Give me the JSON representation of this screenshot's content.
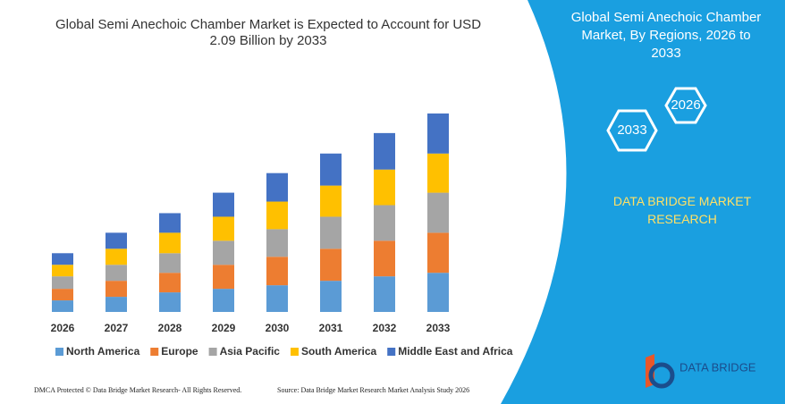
{
  "chart_data": {
    "type": "stacked-bar",
    "title": "Global Semi Anechoic Chamber Market is Expected to Account for USD 2.09 Billion by 2033",
    "categories": [
      "2026",
      "2027",
      "2028",
      "2029",
      "2030",
      "2031",
      "2032",
      "2033"
    ],
    "series": [
      {
        "name": "North America",
        "color": "#5b9bd5",
        "values": [
          13,
          17,
          22,
          26,
          30,
          35,
          40,
          44
        ]
      },
      {
        "name": "Europe",
        "color": "#ed7d31",
        "values": [
          13,
          18,
          22,
          27,
          32,
          36,
          40,
          45
        ]
      },
      {
        "name": "Asia Pacific",
        "color": "#a5a5a5",
        "values": [
          14,
          18,
          22,
          27,
          31,
          36,
          40,
          45
        ]
      },
      {
        "name": "South America",
        "color": "#ffc000",
        "values": [
          13,
          18,
          23,
          27,
          31,
          35,
          40,
          44
        ]
      },
      {
        "name": "Middle East and Africa",
        "color": "#4472c4",
        "values": [
          13,
          18,
          22,
          27,
          32,
          36,
          41,
          45
        ]
      }
    ],
    "ylim": [
      0,
      230
    ]
  },
  "panel": {
    "title": "Global Semi Anechoic Chamber Market, By Regions, 2026 to 2033",
    "hex_labels": [
      "2026",
      "2033"
    ],
    "brand": "DATA BRIDGE MARKET RESEARCH",
    "logo": "DATA BRIDGE"
  },
  "footer": {
    "left": "DMCA Protected © Data Bridge Market Research- All Rights Reserved.",
    "right": "Source: Data Bridge Market Research Market Analysis Study 2026"
  }
}
